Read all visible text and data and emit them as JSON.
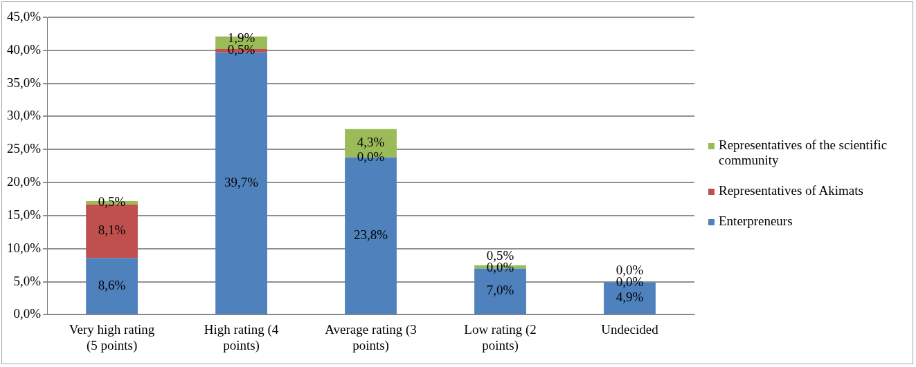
{
  "chart_data": {
    "type": "bar",
    "stacked": true,
    "categories": [
      "Very high rating (5 points)",
      "High rating (4 points)",
      "Average rating (3 points)",
      "Low rating (2 points)",
      "Undecided"
    ],
    "series": [
      {
        "name": "Enterpreneurs",
        "color": "#4f81bd",
        "values": [
          8.6,
          39.7,
          23.8,
          7.0,
          4.9
        ],
        "value_labels": [
          "8,6%",
          "39,7%",
          "23,8%",
          "7,0%",
          "4,9%"
        ]
      },
      {
        "name": "Representatives of Akimats",
        "color": "#c0504d",
        "values": [
          8.1,
          0.5,
          0.0,
          0.0,
          0.0
        ],
        "value_labels": [
          "8,1%",
          "0,5%",
          "0,0%",
          "0,0%",
          "0,0%"
        ]
      },
      {
        "name": "Representatives of the scientific community",
        "color": "#9bbb59",
        "values": [
          0.5,
          1.9,
          4.3,
          0.5,
          0.0
        ],
        "value_labels": [
          "0,5%",
          "1,9%",
          "4,3%",
          "0,5%",
          "0,0%"
        ]
      }
    ],
    "ylim": [
      0,
      45
    ],
    "yticks": [
      {
        "value": 0,
        "label": "0,0%"
      },
      {
        "value": 5,
        "label": "5,0%"
      },
      {
        "value": 10,
        "label": "10,0%"
      },
      {
        "value": 15,
        "label": "15,0%"
      },
      {
        "value": 20,
        "label": "20,0%"
      },
      {
        "value": 25,
        "label": "25,0%"
      },
      {
        "value": 30,
        "label": "30,0%"
      },
      {
        "value": 35,
        "label": "35,0%"
      },
      {
        "value": 40,
        "label": "40,0%"
      },
      {
        "value": 45,
        "label": "45,0%"
      }
    ],
    "grid": "y",
    "legend": "right"
  }
}
